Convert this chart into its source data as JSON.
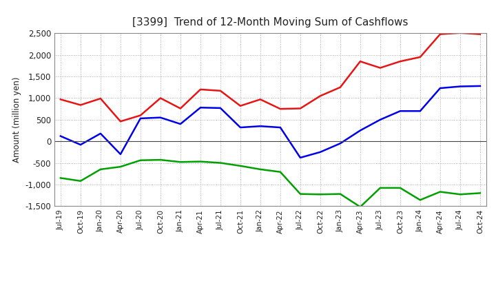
{
  "title": "[3399]  Trend of 12-Month Moving Sum of Cashflows",
  "ylabel": "Amount (million yen)",
  "xlabels": [
    "Jul-19",
    "Oct-19",
    "Jan-20",
    "Apr-20",
    "Jul-20",
    "Oct-20",
    "Jan-21",
    "Apr-21",
    "Jul-21",
    "Oct-21",
    "Jan-22",
    "Apr-22",
    "Jul-22",
    "Oct-22",
    "Jan-23",
    "Apr-23",
    "Jul-23",
    "Oct-23",
    "Jan-24",
    "Apr-24",
    "Jul-24",
    "Oct-24"
  ],
  "operating": [
    970,
    840,
    990,
    460,
    600,
    1000,
    760,
    1200,
    1170,
    820,
    970,
    750,
    760,
    1050,
    1250,
    1850,
    1700,
    1850,
    1950,
    2480,
    2510,
    2480
  ],
  "investing": [
    -850,
    -920,
    -650,
    -590,
    -440,
    -430,
    -480,
    -470,
    -500,
    -570,
    -650,
    -710,
    -1220,
    -1230,
    -1220,
    -1520,
    -1080,
    -1080,
    -1360,
    -1170,
    -1230,
    -1200
  ],
  "free": [
    120,
    -80,
    180,
    -300,
    530,
    550,
    400,
    780,
    770,
    320,
    350,
    320,
    -380,
    -250,
    -50,
    250,
    500,
    700,
    700,
    1230,
    1270,
    1280
  ],
  "operating_color": "#e81414",
  "investing_color": "#00a000",
  "free_color": "#0000e8",
  "ylim": [
    -1500,
    2500
  ],
  "yticks": [
    -1500,
    -1000,
    -500,
    0,
    500,
    1000,
    1500,
    2000,
    2500
  ],
  "background_color": "#ffffff",
  "grid_color": "#aaaaaa",
  "title_color": "#222222"
}
